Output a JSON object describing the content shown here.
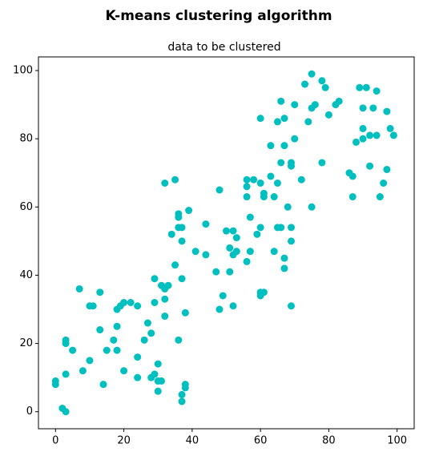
{
  "chart_data": {
    "type": "scatter",
    "suptitle": "K-means clustering algorithm",
    "title": "data to be clustered",
    "color": "#00bfbf",
    "x": [
      0,
      0,
      2,
      3,
      3,
      3,
      3,
      5,
      7,
      8,
      10,
      11,
      10,
      13,
      13,
      14,
      15,
      17,
      18,
      18,
      18,
      19,
      20,
      20,
      22,
      24,
      24,
      24,
      26,
      27,
      28,
      28,
      29,
      29,
      29,
      30,
      30,
      30,
      31,
      31,
      32,
      32,
      32,
      33,
      32,
      34,
      35,
      35,
      36,
      36,
      36,
      36,
      37,
      37,
      37,
      37,
      37,
      38,
      38,
      38,
      39,
      41,
      44,
      44,
      47,
      48,
      48,
      49,
      50,
      51,
      51,
      52,
      52,
      52,
      53,
      53,
      56,
      56,
      56,
      56,
      57,
      57,
      58,
      59,
      60,
      60,
      60,
      60,
      60,
      61,
      61,
      61,
      63,
      63,
      64,
      64,
      65,
      65,
      65,
      66,
      66,
      66,
      67,
      67,
      67,
      67,
      68,
      69,
      69,
      69,
      69,
      69,
      70,
      70,
      72,
      73,
      74,
      75,
      75,
      75,
      76,
      78,
      78,
      79,
      80,
      82,
      83,
      86,
      87,
      87,
      88,
      89,
      90,
      90,
      90,
      91,
      92,
      92,
      93,
      94,
      94,
      95,
      96,
      97,
      97,
      98,
      99
    ],
    "values": [
      9,
      8,
      1,
      0,
      21,
      20,
      11,
      18,
      36,
      12,
      31,
      31,
      15,
      35,
      24,
      8,
      18,
      21,
      30,
      25,
      18,
      31,
      32,
      12,
      32,
      31,
      16,
      10,
      21,
      26,
      10,
      23,
      11,
      39,
      32,
      14,
      6,
      9,
      9,
      37,
      36,
      33,
      28,
      37,
      67,
      52,
      68,
      43,
      58,
      57,
      54,
      21,
      39,
      54,
      50,
      5,
      3,
      8,
      7,
      29,
      59,
      47,
      55,
      46,
      41,
      65,
      30,
      34,
      53,
      41,
      48,
      31,
      46,
      53,
      47,
      51,
      68,
      66,
      63,
      44,
      57,
      47,
      68,
      52,
      86,
      54,
      67,
      35,
      34,
      35,
      64,
      63,
      78,
      69,
      63,
      47,
      85,
      67,
      54,
      91,
      73,
      54,
      86,
      78,
      45,
      42,
      60,
      73,
      72,
      54,
      50,
      31,
      90,
      80,
      68,
      96,
      85,
      99,
      89,
      60,
      90,
      97,
      73,
      95,
      87,
      90,
      91,
      70,
      69,
      63,
      79,
      95,
      89,
      83,
      80,
      95,
      81,
      72,
      89,
      94,
      81,
      63,
      67,
      88,
      71,
      83,
      81
    ],
    "xlim": [
      -5,
      105
    ],
    "ylim": [
      -5,
      104
    ],
    "xticks": [
      0,
      20,
      40,
      60,
      80,
      100
    ],
    "yticks": [
      0,
      20,
      40,
      60,
      80,
      100
    ]
  }
}
